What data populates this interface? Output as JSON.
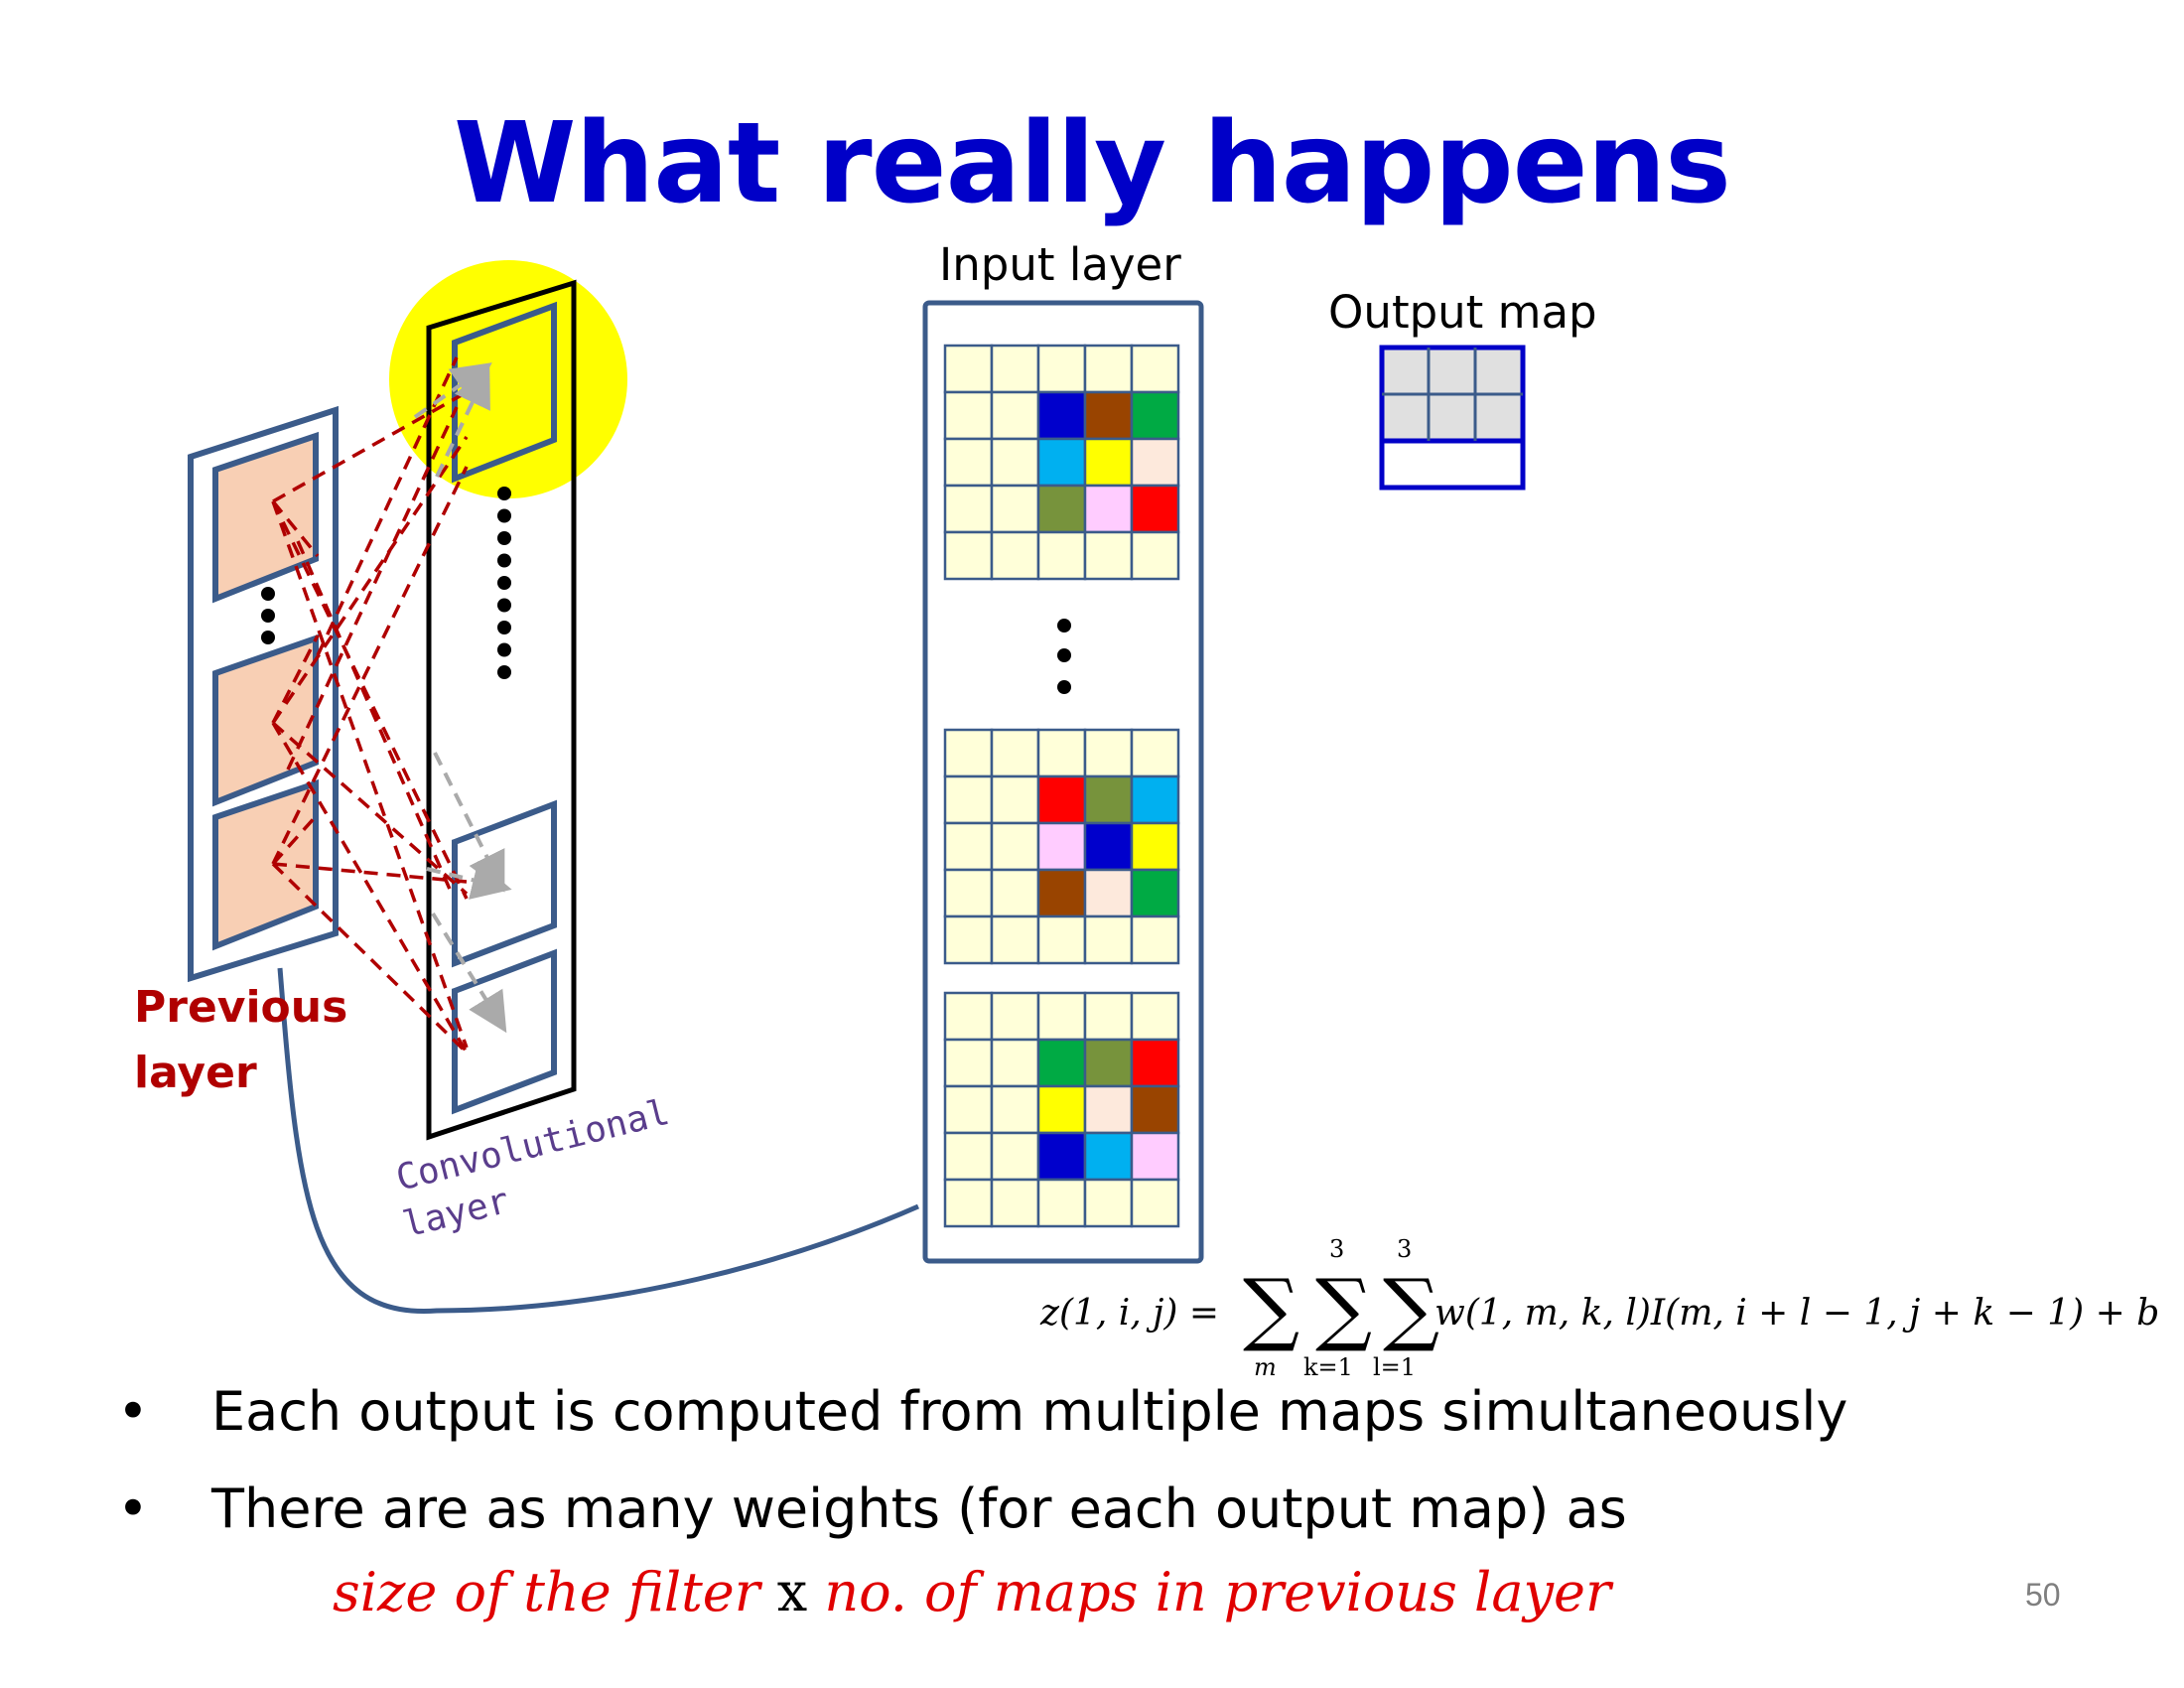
{
  "slide": {
    "title": "What really happens",
    "page_number": "50"
  },
  "labels": {
    "input_layer": "Input layer",
    "output_map": "Output map",
    "previous_layer": [
      "Previous",
      "layer"
    ],
    "convolutional_layer": [
      "Convolutional",
      "layer"
    ]
  },
  "formula": {
    "lhs": "z(1, i, j) =",
    "sum1_sub": "m",
    "sum2_sub": "k=1",
    "sum2_sup": "3",
    "sum3_sub": "l=1",
    "sum3_sup": "3",
    "rhs": "w(1, m, k, l)I(m, i + l − 1, j + k − 1) + b"
  },
  "bullets": [
    "Each output is computed from multiple maps simultaneously",
    "There are as many weights (for each output map) as"
  ],
  "emphasis": {
    "part1": "size of the filter",
    "sep": "x",
    "part2": "no. of maps in previous layer"
  },
  "colors": {
    "title": "#0000c8",
    "frame": "#3b5b8a",
    "highlight": "#ffff00",
    "cell_bg": "#ffffd9",
    "map_fill": "#f8cfb4",
    "dashed_red": "#b00000",
    "dashed_gray": "#aaaaaa",
    "output_border": "#0000c8",
    "output_cell": "#e0e0e0"
  },
  "input_patches": [
    [
      "#0000cc",
      "#994400",
      "#00aa44",
      "#00b0f0",
      "#ffff00",
      "#fde9dc",
      "#77933c",
      "#ffccff",
      "#ff0000"
    ],
    [
      "#ff0000",
      "#77933c",
      "#00b0f0",
      "#ffccff",
      "#0000cc",
      "#ffff00",
      "#994400",
      "#fde9dc",
      "#00aa44"
    ],
    [
      "#00aa44",
      "#77933c",
      "#ff0000",
      "#ffff00",
      "#fde9dc",
      "#994400",
      "#0000cc",
      "#00b0f0",
      "#ffccff"
    ]
  ]
}
